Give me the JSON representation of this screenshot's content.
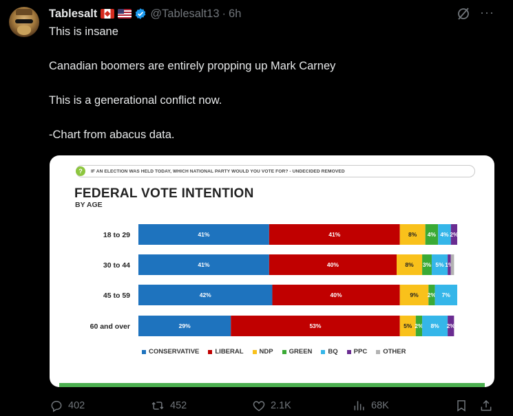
{
  "tweet": {
    "display_name": "Tablesalt",
    "handle": "@Tablesalt13",
    "separator": "·",
    "time": "6h",
    "lines": [
      "This is insane",
      "Canadian boomers are entirely propping up Mark Carney",
      "This is a generational conflict now.",
      "-Chart from abacus data."
    ]
  },
  "icons": {
    "verified": "verified-badge-icon",
    "grok": "grok-icon",
    "more": "more-icon",
    "reply": "reply-icon",
    "retweet": "retweet-icon",
    "like": "heart-icon",
    "views": "views-icon",
    "bookmark": "bookmark-icon",
    "share": "share-icon"
  },
  "actions": {
    "more_label": "···",
    "reply_count": "402",
    "retweet_count": "452",
    "like_count": "2.1K",
    "views_count": "68K"
  },
  "chart_data": {
    "type": "bar",
    "orientation": "horizontal-stacked-100",
    "question": "IF AN ELECTION WAS HELD TODAY, WHICH NATIONAL PARTY WOULD YOU VOTE FOR? - UNDECIDED REMOVED",
    "title": "FEDERAL VOTE INTENTION",
    "subtitle": "BY AGE",
    "categories": [
      "18 to 29",
      "30 to 44",
      "45 to 59",
      "60 and over"
    ],
    "series": [
      {
        "name": "CONSERVATIVE",
        "color": "#1e73be",
        "values": [
          41,
          41,
          42,
          29
        ],
        "labels": [
          "41%",
          "41%",
          "42%",
          "29%"
        ]
      },
      {
        "name": "LIBERAL",
        "color": "#c00000",
        "values": [
          41,
          40,
          40,
          53
        ],
        "labels": [
          "41%",
          "40%",
          "40%",
          "53%"
        ]
      },
      {
        "name": "NDP",
        "color": "#f9c11b",
        "values": [
          8,
          8,
          9,
          5
        ],
        "labels": [
          "8%",
          "8%",
          "9%",
          "5%"
        ]
      },
      {
        "name": "GREEN",
        "color": "#3aaa35",
        "values": [
          4,
          3,
          2,
          2
        ],
        "labels": [
          "4%",
          "3%",
          "2%",
          "2%"
        ]
      },
      {
        "name": "BQ",
        "color": "#35b6e9",
        "values": [
          4,
          5,
          7,
          8
        ],
        "labels": [
          "4%",
          "5%",
          "7%",
          "8%"
        ]
      },
      {
        "name": "PPC",
        "color": "#6a2c91",
        "values": [
          2,
          1,
          0,
          2
        ],
        "labels": [
          "2%",
          "1%",
          "",
          "2%"
        ]
      },
      {
        "name": "OTHER",
        "color": "#b3b3b3",
        "values": [
          0,
          1,
          0,
          0
        ],
        "labels": [
          "",
          "",
          "",
          ""
        ]
      }
    ],
    "xlim": [
      0,
      100
    ],
    "legend_position": "bottom"
  }
}
